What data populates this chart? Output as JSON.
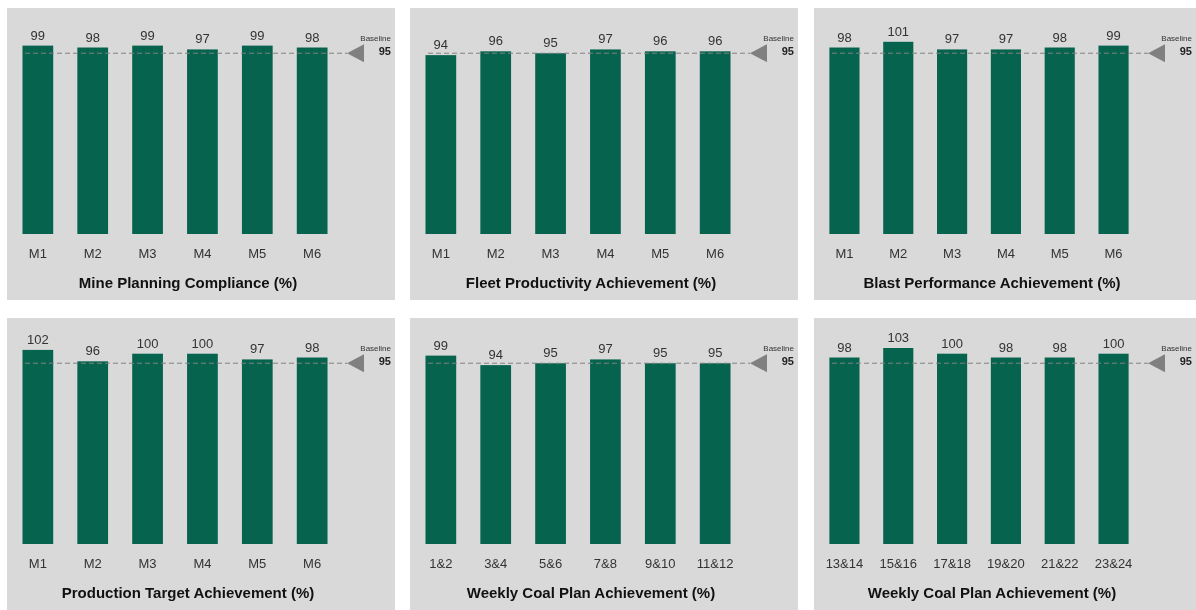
{
  "chart_data": [
    {
      "type": "bar",
      "title": "Mine Planning Compliance (%)",
      "categories": [
        "M1",
        "M2",
        "M3",
        "M4",
        "M5",
        "M6"
      ],
      "values": [
        99,
        98,
        99,
        97,
        99,
        98
      ],
      "color": "#06634e",
      "data_labels": true,
      "ref_lines": [
        {
          "axis": "y",
          "value": 95,
          "label": "Baseline 95",
          "color": "#808080",
          "line_style": "dashed"
        }
      ]
    },
    {
      "type": "bar",
      "title": "Fleet Productivity Achievement (%)",
      "categories": [
        "M1",
        "M2",
        "M3",
        "M4",
        "M5",
        "M6"
      ],
      "values": [
        94,
        96,
        95,
        97,
        96,
        96
      ],
      "color": "#06634e",
      "data_labels": true,
      "ref_lines": [
        {
          "axis": "y",
          "value": 95,
          "label": "Baseline 95",
          "color": "#808080",
          "line_style": "dashed"
        }
      ]
    },
    {
      "type": "bar",
      "title": "Blast Performance Achievement (%)",
      "categories": [
        "M1",
        "M2",
        "M3",
        "M4",
        "M5",
        "M6"
      ],
      "values": [
        98,
        101,
        97,
        97,
        98,
        99
      ],
      "color": "#06634e",
      "data_labels": true,
      "ref_lines": [
        {
          "axis": "y",
          "value": 95,
          "label": "Baseline 95",
          "color": "#808080",
          "line_style": "dashed"
        }
      ]
    },
    {
      "type": "bar",
      "title": "Production Target Achievement (%)",
      "categories": [
        "M1",
        "M2",
        "M3",
        "M4",
        "M5",
        "M6"
      ],
      "values": [
        102,
        96,
        100,
        100,
        97,
        98
      ],
      "color": "#06634e",
      "data_labels": true,
      "ref_lines": [
        {
          "axis": "y",
          "value": 95,
          "label": "Baseline 95",
          "color": "#808080",
          "line_style": "dashed"
        }
      ]
    },
    {
      "type": "bar",
      "title": "Weekly Coal Plan Achievement (%)",
      "categories": [
        "1&2",
        "3&4",
        "5&6",
        "7&8",
        "9&10",
        "11&12"
      ],
      "values": [
        99,
        94,
        95,
        97,
        95,
        95
      ],
      "color": "#06634e",
      "data_labels": true,
      "ref_lines": [
        {
          "axis": "y",
          "value": 95,
          "label": "Baseline 95",
          "color": "#808080",
          "line_style": "dashed"
        }
      ]
    },
    {
      "type": "bar",
      "title": "Weekly Coal Plan Achievement (%)",
      "categories": [
        "13&14",
        "15&16",
        "17&18",
        "19&20",
        "21&22",
        "23&24"
      ],
      "values": [
        98,
        103,
        100,
        98,
        98,
        100
      ],
      "color": "#06634e",
      "data_labels": true,
      "ref_lines": [
        {
          "axis": "y",
          "value": 95,
          "label": "Baseline 95",
          "color": "#808080",
          "line_style": "dashed"
        }
      ]
    }
  ]
}
